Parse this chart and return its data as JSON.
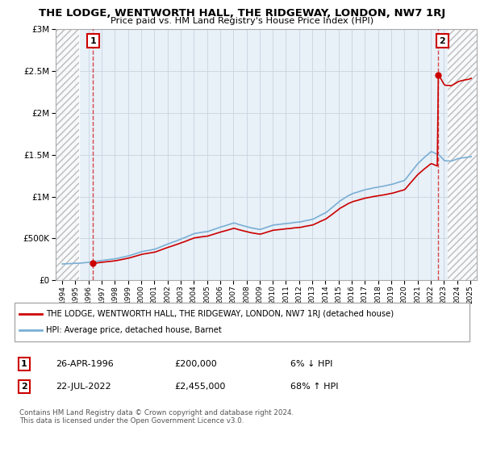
{
  "title": "THE LODGE, WENTWORTH HALL, THE RIDGEWAY, LONDON, NW7 1RJ",
  "subtitle": "Price paid vs. HM Land Registry's House Price Index (HPI)",
  "legend_line1": "THE LODGE, WENTWORTH HALL, THE RIDGEWAY, LONDON, NW7 1RJ (detached house)",
  "legend_line2": "HPI: Average price, detached house, Barnet",
  "table_row1_date": "26-APR-1996",
  "table_row1_price": "£200,000",
  "table_row1_hpi": "6% ↓ HPI",
  "table_row2_date": "22-JUL-2022",
  "table_row2_price": "£2,455,000",
  "table_row2_hpi": "68% ↑ HPI",
  "footer": "Contains HM Land Registry data © Crown copyright and database right 2024.\nThis data is licensed under the Open Government Licence v3.0.",
  "sale1_year": 1996.32,
  "sale1_price": 200000,
  "sale2_year": 2022.55,
  "sale2_price": 2455000,
  "hpi_color": "#7aafd4",
  "price_color": "#cc0000",
  "ylim_max": 3000000,
  "xlim_min": 1993.5,
  "xlim_max": 2025.5,
  "hatch_color": "#bbbbbb",
  "plot_bg": "#e8f0f8",
  "grid_color": "#c8d4e0"
}
